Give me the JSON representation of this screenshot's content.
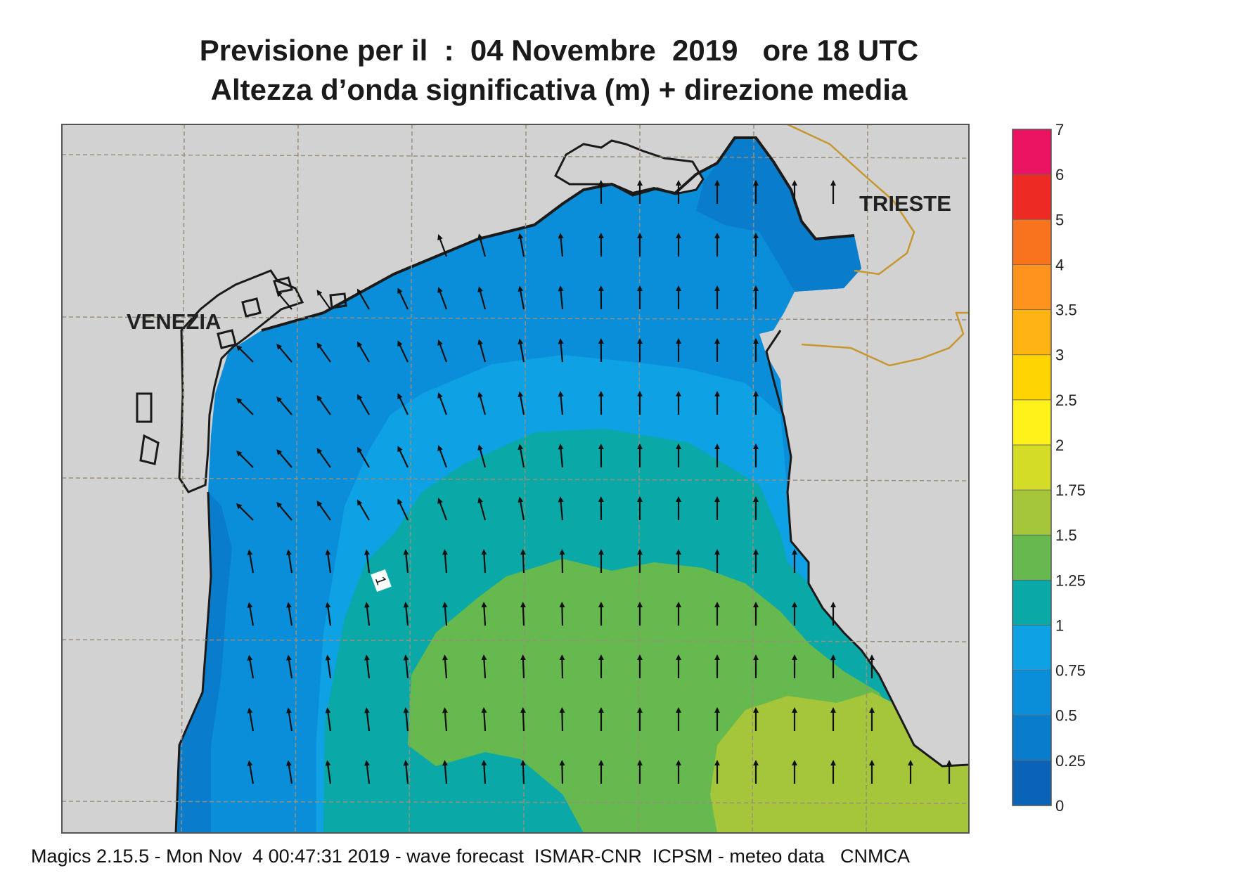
{
  "title_line1": "Previsione per il  :  04 Novembre  2019   ore 18 UTC",
  "title_line2": "Altezza d’onda significativa (m) + direzione media",
  "footer": "Magics 2.15.5 - Mon Nov  4 00:47:31 2019 - wave forecast  ISMAR-CNR  ICPSM - meteo data   CNMCA",
  "cities": {
    "venezia": "VENEZIA",
    "trieste": "TRIESTE"
  },
  "contour_label": "1",
  "colorbar": {
    "levels": [
      "0",
      "0.25",
      "0.5",
      "0.75",
      "1",
      "1.25",
      "1.5",
      "1.75",
      "2",
      "2.5",
      "3",
      "3.5",
      "4",
      "5",
      "6",
      "7"
    ],
    "colors": [
      "#0b63b8",
      "#0a7ccc",
      "#0b8ed9",
      "#0ea1e3",
      "#0aa8a6",
      "#65b94f",
      "#a5c53a",
      "#d4dc28",
      "#fff21b",
      "#ffd400",
      "#ffb414",
      "#ff931e",
      "#f9731f",
      "#ee2a24",
      "#ea1462"
    ]
  },
  "colors": {
    "land": "#d2d2d2",
    "coast": "#1a1a1a",
    "border": "#c8962e",
    "grid": "#9a8f7a"
  }
}
